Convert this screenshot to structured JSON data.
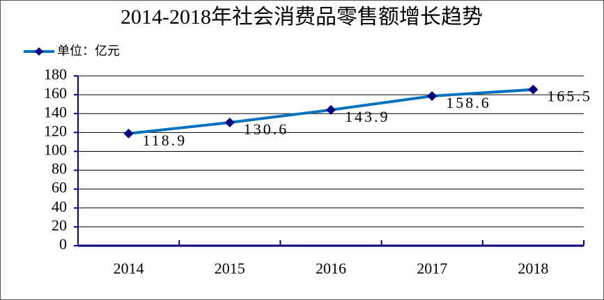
{
  "chart_data": {
    "type": "line",
    "title": "2014-2018年社会消费品零售额增长趋势",
    "categories": [
      "2014",
      "2015",
      "2016",
      "2017",
      "2018"
    ],
    "series": [
      {
        "name": "单位：亿元",
        "color": "#0070c0",
        "marker_color": "#000080",
        "values": [
          118.9,
          130.6,
          143.9,
          158.6,
          165.5
        ]
      }
    ],
    "ylim": [
      0,
      180
    ],
    "yticks": [
      0,
      20,
      40,
      60,
      80,
      100,
      120,
      140,
      160,
      180
    ],
    "grid": true,
    "legend": "top-left",
    "data_labels": true
  }
}
